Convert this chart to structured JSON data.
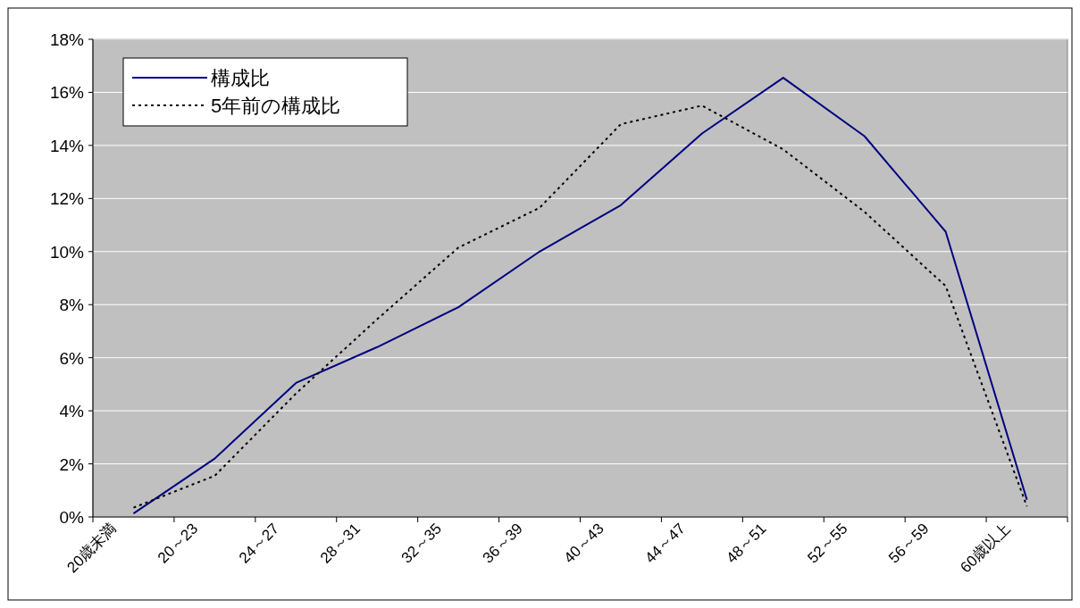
{
  "chart_data": {
    "type": "line",
    "categories": [
      "20歳未満",
      "20～23",
      "24～27",
      "28～31",
      "32～35",
      "36～39",
      "40～43",
      "44～47",
      "48～51",
      "52～55",
      "56～59",
      "60歳以上"
    ],
    "series": [
      {
        "name": "構成比",
        "color": "#000080",
        "line_style": "solid",
        "values": [
          0.13,
          2.2,
          5.05,
          6.4,
          7.9,
          10.0,
          11.75,
          14.45,
          16.55,
          14.35,
          10.75,
          0.65
        ]
      },
      {
        "name": "5年前の構成比",
        "color": "#000000",
        "line_style": "dotted",
        "values": [
          0.35,
          1.55,
          4.65,
          7.45,
          10.15,
          11.65,
          14.8,
          15.5,
          13.85,
          11.5,
          8.7,
          0.4
        ]
      }
    ],
    "ylim": [
      0,
      18
    ],
    "yticks": [
      {
        "value": 0,
        "label": "0%"
      },
      {
        "value": 2,
        "label": "2%"
      },
      {
        "value": 4,
        "label": "4%"
      },
      {
        "value": 6,
        "label": "6%"
      },
      {
        "value": 8,
        "label": "8%"
      },
      {
        "value": 10,
        "label": "10%"
      },
      {
        "value": 12,
        "label": "12%"
      },
      {
        "value": 14,
        "label": "14%"
      },
      {
        "value": 16,
        "label": "16%"
      },
      {
        "value": 18,
        "label": "18%"
      }
    ],
    "grid": "y",
    "legend": "top left"
  }
}
